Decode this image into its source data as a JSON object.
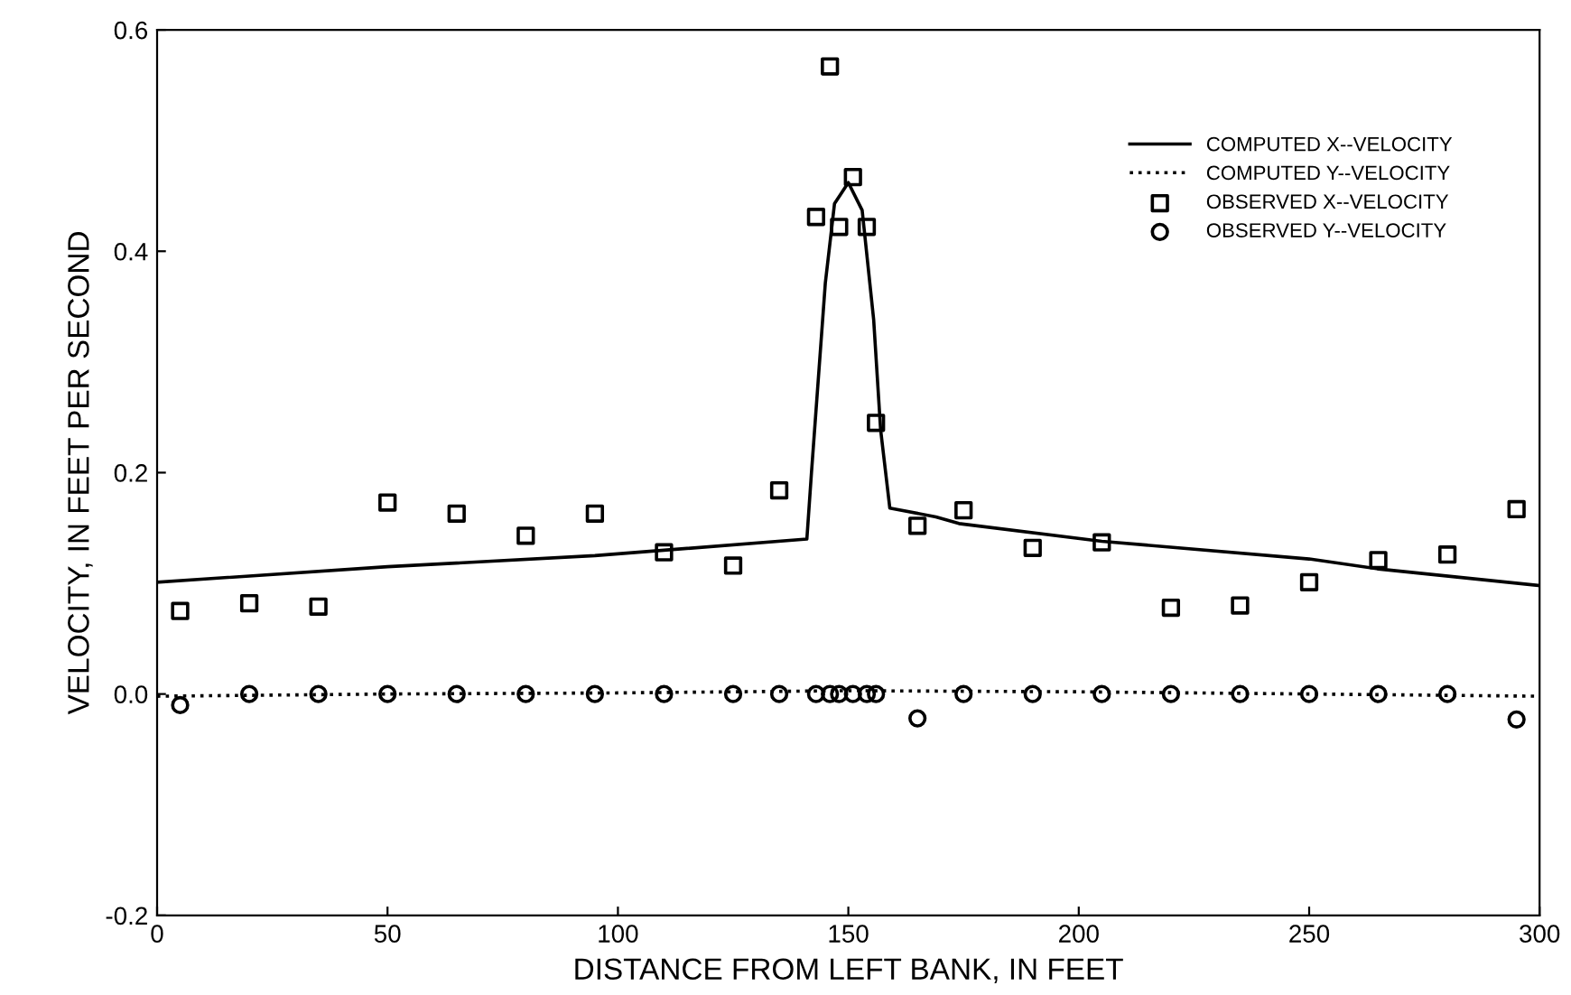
{
  "chart_data": {
    "type": "scatter",
    "xlabel": "DISTANCE FROM LEFT BANK, IN FEET",
    "ylabel": "VELOCITY, IN FEET PER SECOND",
    "xlim": [
      0,
      300
    ],
    "ylim": [
      -0.2,
      0.6
    ],
    "xticks": [
      0,
      50,
      100,
      150,
      200,
      250,
      300
    ],
    "yticks": [
      {
        "value": -0.2,
        "label": "-0.2"
      },
      {
        "value": 0,
        "label": "0.0"
      },
      {
        "value": 0.2,
        "label": "0.2"
      },
      {
        "value": 0.4,
        "label": "0.4"
      },
      {
        "value": 0.6,
        "label": "0.6"
      }
    ],
    "grid": false,
    "legend": "top right",
    "series": [
      {
        "name": "COMPUTED X--VELOCITY",
        "type": "line",
        "line_style": "solid",
        "marker": "none",
        "color": "#000000",
        "x": [
          0,
          50,
          95,
          141,
          142,
          145,
          147,
          150,
          153,
          155.5,
          157,
          159,
          169,
          174,
          205,
          250,
          265,
          300
        ],
        "values": [
          0.101,
          0.115,
          0.125,
          0.14,
          0.2,
          0.371,
          0.443,
          0.462,
          0.437,
          0.338,
          0.239,
          0.168,
          0.16,
          0.154,
          0.138,
          0.122,
          0.113,
          0.098
        ]
      },
      {
        "name": "COMPUTED Y--VELOCITY",
        "type": "line",
        "line_style": "dotted",
        "marker": "none",
        "color": "#000000",
        "x": [
          0,
          50,
          100,
          150,
          200,
          250,
          300
        ],
        "values": [
          -0.002,
          0.0,
          0.001,
          0.003,
          0.002,
          0.0,
          -0.002
        ]
      },
      {
        "name": "OBSERVED X--VELOCITY",
        "marker": "square",
        "color": "#000000",
        "x": [
          5,
          20,
          35,
          50,
          65,
          80,
          95,
          110,
          125,
          135,
          143,
          146,
          148,
          151,
          154,
          156,
          165,
          175,
          190,
          205,
          220,
          235,
          250,
          265,
          280,
          295
        ],
        "values": [
          0.075,
          0.082,
          0.079,
          0.173,
          0.163,
          0.143,
          0.163,
          0.128,
          0.116,
          0.184,
          0.431,
          0.567,
          0.422,
          0.467,
          0.422,
          0.245,
          0.152,
          0.166,
          0.132,
          0.137,
          0.078,
          0.08,
          0.101,
          0.121,
          0.126,
          0.167
        ]
      },
      {
        "name": "OBSERVED Y--VELOCITY",
        "marker": "circle",
        "color": "#000000",
        "x": [
          5,
          20,
          35,
          50,
          65,
          80,
          95,
          110,
          125,
          135,
          143,
          146,
          148,
          151,
          154,
          156,
          165,
          175,
          190,
          205,
          220,
          235,
          250,
          265,
          280,
          295
        ],
        "values": [
          -0.01,
          0,
          0,
          0,
          0,
          0,
          0,
          0,
          0,
          0,
          0,
          0,
          0,
          0,
          0,
          0,
          -0.022,
          0,
          0,
          0,
          0,
          0,
          0,
          0,
          0,
          -0.023
        ]
      }
    ]
  }
}
